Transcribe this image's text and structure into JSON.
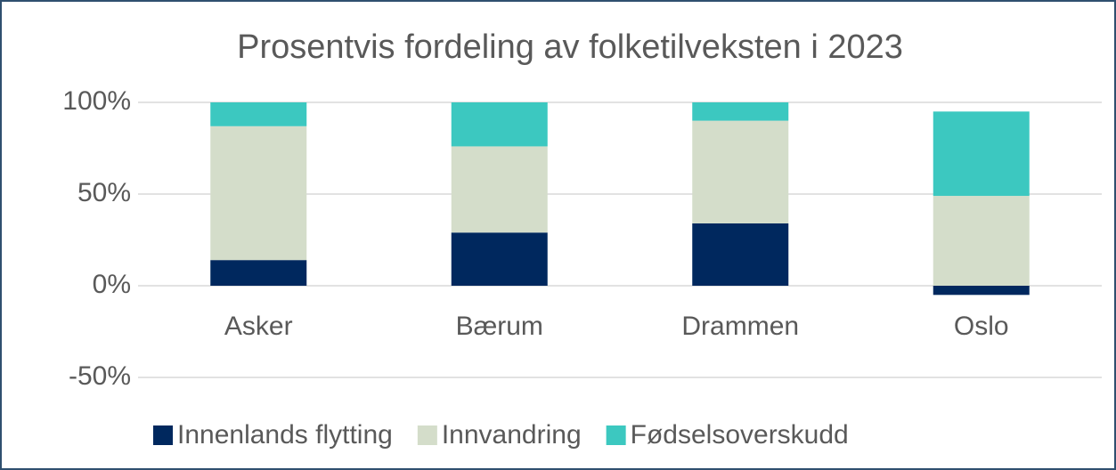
{
  "chart_data": {
    "type": "stacked_bar",
    "title": "Prosentvis fordeling av folketilveksten i 2023",
    "categories": [
      "Asker",
      "Bærum",
      "Drammen",
      "Oslo"
    ],
    "series": [
      {
        "name": "Innenlands flytting",
        "color": "#00285e",
        "values": [
          14,
          29,
          34,
          -5
        ]
      },
      {
        "name": "Innvandring",
        "color": "#d4ddca",
        "values": [
          73,
          47,
          56,
          49
        ]
      },
      {
        "name": "Fødselsoverskudd",
        "color": "#3cc8c0",
        "values": [
          13,
          24,
          10,
          46
        ]
      }
    ],
    "ylim": [
      -50,
      100
    ],
    "yticks": [
      {
        "value": -50,
        "label": "-50%"
      },
      {
        "value": 0,
        "label": "0%"
      },
      {
        "value": 50,
        "label": "50%"
      },
      {
        "value": 100,
        "label": "100%"
      }
    ],
    "grid": true,
    "legend": "bottom"
  }
}
